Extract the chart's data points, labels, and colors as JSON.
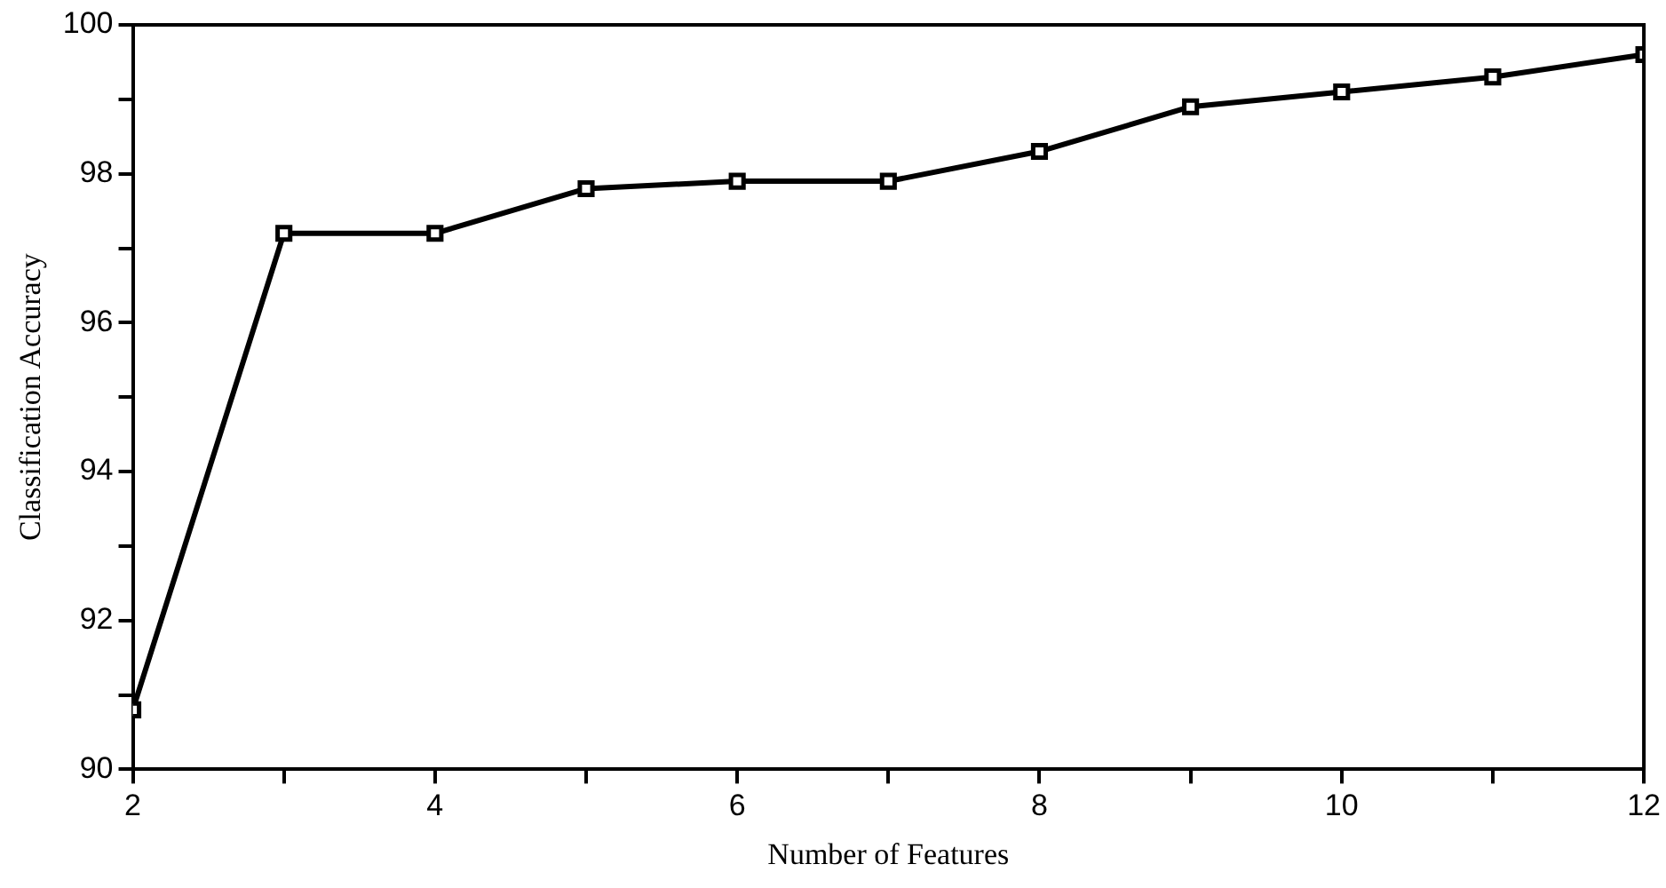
{
  "chart_data": {
    "type": "line",
    "xlabel": "Number of Features",
    "ylabel": "Classification Accuracy",
    "x": [
      2,
      3,
      4,
      5,
      6,
      7,
      8,
      9,
      10,
      11,
      12
    ],
    "series": [
      {
        "color": "#000000",
        "values": [
          90.8,
          97.2,
          97.2,
          97.8,
          97.9,
          97.9,
          98.3,
          98.9,
          99.1,
          99.3,
          99.6
        ]
      }
    ],
    "xlim": [
      2,
      12
    ],
    "xticks": [
      2,
      {
        "value": 3,
        "label": null
      },
      4,
      {
        "value": 5,
        "label": null
      },
      6,
      {
        "value": 7,
        "label": null
      },
      8,
      {
        "value": 9,
        "label": null
      },
      10,
      {
        "value": 11,
        "label": null
      },
      12
    ],
    "ylim": [
      90,
      100
    ],
    "yticks": [
      90,
      {
        "value": 91,
        "label": null
      },
      92,
      {
        "value": 93,
        "label": null
      },
      94,
      {
        "value": 95,
        "label": null
      },
      96,
      {
        "value": 97,
        "label": null
      },
      98,
      {
        "value": 99,
        "label": null
      },
      100
    ],
    "grid": false,
    "legend": false,
    "marker": "square",
    "line_style": "solid"
  }
}
